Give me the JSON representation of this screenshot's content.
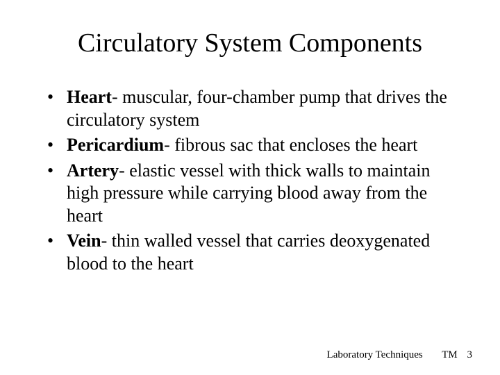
{
  "title": "Circulatory System Components",
  "title_fontsize": 38,
  "body_fontsize": 26,
  "footer_fontsize": 15,
  "text_color": "#000000",
  "background_color": "#ffffff",
  "bullets": [
    {
      "term": "Heart",
      "definition": "- muscular, four-chamber pump that drives the circulatory system"
    },
    {
      "term": "Pericardium",
      "definition": "- fibrous sac that encloses the heart"
    },
    {
      "term": "Artery",
      "definition": "- elastic vessel with thick walls to maintain high pressure while carrying blood away from the heart"
    },
    {
      "term": "Vein",
      "definition": "- thin walled vessel that carries deoxygenated blood to the heart"
    }
  ],
  "footer": {
    "label": "Laboratory Techniques",
    "tm_label": "TM",
    "page_number": "3"
  }
}
